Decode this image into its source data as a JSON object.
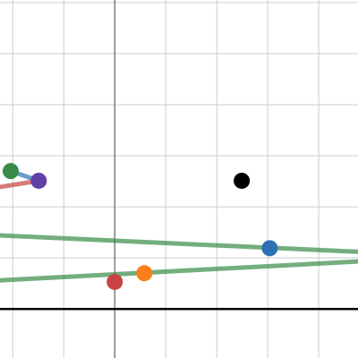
{
  "chart_data": {
    "type": "scatter",
    "xlim": [
      -2.25,
      4.77
    ],
    "ylim": [
      -0.96,
      6.05
    ],
    "xticks": [
      -2,
      -1,
      0,
      1,
      2,
      3,
      4
    ],
    "yticks": [
      0,
      1,
      2,
      3,
      4,
      5,
      6
    ],
    "grid": true,
    "axes": true,
    "series": [
      {
        "mode": "line",
        "color": "#c74440",
        "x": [
          -2.25,
          -1.49
        ],
        "values": [
          2.39,
          2.51
        ]
      },
      {
        "mode": "line",
        "color": "#2d70b3",
        "x": [
          -2.04,
          -1.49
        ],
        "values": [
          2.7,
          2.51
        ]
      },
      {
        "mode": "line",
        "color": "#388c46",
        "x": [
          -2.25,
          4.77
        ],
        "values": [
          1.44,
          1.12
        ]
      },
      {
        "mode": "line",
        "color": "#388c46",
        "x": [
          -2.25,
          4.77
        ],
        "values": [
          0.56,
          0.93
        ]
      },
      {
        "mode": "point",
        "color": "#388c46",
        "x": [
          -2.04
        ],
        "values": [
          2.7
        ]
      },
      {
        "mode": "point",
        "color": "#6042a6",
        "x": [
          -1.49
        ],
        "values": [
          2.51
        ]
      },
      {
        "mode": "point",
        "color": "#000000",
        "x": [
          2.49
        ],
        "values": [
          2.51
        ]
      },
      {
        "mode": "point",
        "color": "#2d70b3",
        "x": [
          3.04
        ],
        "values": [
          1.19
        ]
      },
      {
        "mode": "point",
        "color": "#fa7e19",
        "x": [
          0.58
        ],
        "values": [
          0.7
        ]
      },
      {
        "mode": "point",
        "color": "#c74440",
        "x": [
          0
        ],
        "values": [
          0.53
        ]
      }
    ]
  }
}
